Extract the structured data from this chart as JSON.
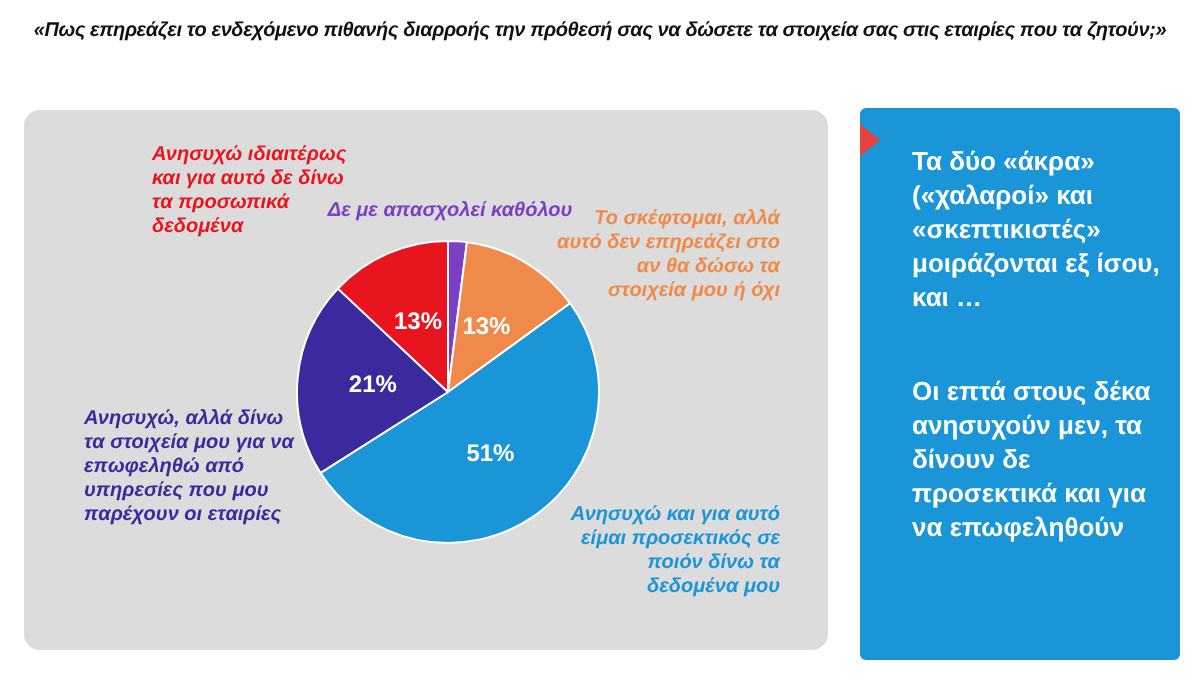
{
  "chart_data": {
    "type": "pie",
    "title": "«Πως επηρεάζει  το ενδεχόμενο πιθανής διαρροής την πρόθεσή σας να δώσετε τα στοιχεία σας στις εταιρίες που τα ζητούν;»",
    "categories": [
      "Δε με απασχολεί καθόλου",
      "Το σκέφτομαι, αλλά αυτό δεν επηρεάζει στο αν θα δώσω τα στοιχεία μου ή όχι",
      "Ανησυχώ και για αυτό είμαι προσεκτικός σε ποιόν δίνω τα δεδομένα μου",
      "Ανησυχώ, αλλά δίνω τα στοιχεία μου για να επωφεληθώ από υπηρεσίες που μου παρέχουν οι εταιρίες",
      "Ανησυχώ ιδιαιτέρως και για αυτό δε δίνω τα προσωπικά δεδομένα"
    ],
    "values": [
      2,
      13,
      51,
      21,
      13
    ],
    "colors": [
      "#7b3fc4",
      "#f08a4b",
      "#1a96d8",
      "#3b2a9e",
      "#e8141e"
    ],
    "value_labels": [
      null,
      "13%",
      "51%",
      "21%",
      "13%"
    ],
    "annotations": [
      "Τα δύο «άκρα» («χαλαροί» και «σκεπτικιστές» μοιράζονται εξ ίσου, και …",
      "Οι επτά στους δέκα ανησυχούν μεν, τα δίνουν δε προσεκτικά και για να επωφεληθούν"
    ]
  }
}
